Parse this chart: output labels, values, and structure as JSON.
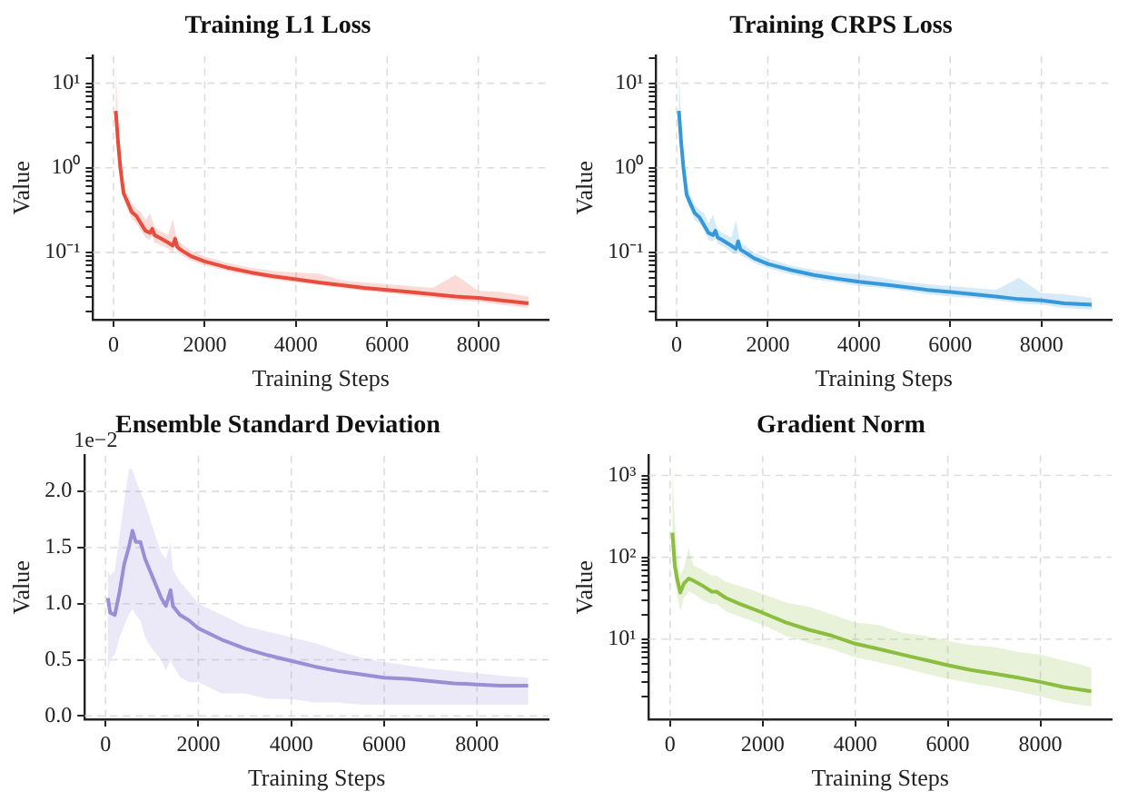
{
  "chart_data": [
    {
      "type": "line",
      "title": "Training L1 Loss",
      "xlabel": "Training Steps",
      "ylabel": "Value",
      "log": "y",
      "grid": true,
      "legend": false,
      "x": [
        50,
        100,
        150,
        220,
        300,
        400,
        500,
        600,
        700,
        800,
        850,
        900,
        1000,
        1200,
        1300,
        1350,
        1400,
        1500,
        1700,
        2000,
        2500,
        3000,
        3500,
        4000,
        4500,
        5000,
        5500,
        6000,
        6500,
        7000,
        7500,
        8000,
        8500,
        9100
      ],
      "series": [
        {
          "color": "#e74c3c",
          "values": [
            4.7,
            2.0,
            1.0,
            0.5,
            0.4,
            0.3,
            0.27,
            0.22,
            0.18,
            0.17,
            0.19,
            0.16,
            0.15,
            0.13,
            0.12,
            0.145,
            0.115,
            0.105,
            0.09,
            0.078,
            0.066,
            0.058,
            0.052,
            0.048,
            0.044,
            0.041,
            0.038,
            0.036,
            0.034,
            0.032,
            0.03,
            0.029,
            0.027,
            0.025
          ],
          "lower": [
            3.5,
            1.6,
            0.8,
            0.42,
            0.33,
            0.25,
            0.22,
            0.18,
            0.15,
            0.14,
            0.16,
            0.13,
            0.125,
            0.11,
            0.1,
            0.12,
            0.1,
            0.092,
            0.08,
            0.07,
            0.06,
            0.053,
            0.048,
            0.044,
            0.041,
            0.038,
            0.035,
            0.033,
            0.031,
            0.029,
            0.027,
            0.026,
            0.024,
            0.022
          ],
          "upper": [
            17,
            3,
            1.4,
            0.62,
            0.5,
            0.38,
            0.33,
            0.3,
            0.24,
            0.29,
            0.24,
            0.2,
            0.18,
            0.16,
            0.25,
            0.18,
            0.14,
            0.125,
            0.105,
            0.09,
            0.075,
            0.066,
            0.06,
            0.058,
            0.056,
            0.047,
            0.044,
            0.042,
            0.04,
            0.038,
            0.054,
            0.035,
            0.034,
            0.03
          ]
        }
      ],
      "xlim": [
        -450,
        9540
      ],
      "xticks": [
        0,
        2000,
        4000,
        6000,
        8000
      ],
      "ylim": [
        0.016,
        21
      ],
      "yticks": [
        {
          "value": 0.02,
          "label": null
        },
        {
          "value": 0.03,
          "label": null
        },
        {
          "value": 0.04,
          "label": null
        },
        {
          "value": 0.05,
          "label": null
        },
        {
          "value": 0.06,
          "label": null
        },
        {
          "value": 0.07,
          "label": null
        },
        {
          "value": 0.08,
          "label": null
        },
        {
          "value": 0.09,
          "label": null
        },
        {
          "value": 0.1,
          "label": "10⁻¹"
        },
        {
          "value": 0.2,
          "label": null
        },
        {
          "value": 0.3,
          "label": null
        },
        {
          "value": 0.4,
          "label": null
        },
        {
          "value": 0.5,
          "label": null
        },
        {
          "value": 0.6,
          "label": null
        },
        {
          "value": 0.7,
          "label": null
        },
        {
          "value": 0.8,
          "label": null
        },
        {
          "value": 0.9,
          "label": null
        },
        {
          "value": 1,
          "label": "10⁰"
        },
        {
          "value": 2,
          "label": null
        },
        {
          "value": 3,
          "label": null
        },
        {
          "value": 4,
          "label": null
        },
        {
          "value": 5,
          "label": null
        },
        {
          "value": 6,
          "label": null
        },
        {
          "value": 7,
          "label": null
        },
        {
          "value": 8,
          "label": null
        },
        {
          "value": 9,
          "label": null
        },
        {
          "value": 10,
          "label": "10¹"
        },
        {
          "value": 20,
          "label": null
        }
      ]
    },
    {
      "type": "line",
      "title": "Training CRPS Loss",
      "xlabel": "Training Steps",
      "ylabel": "Value",
      "log": "y",
      "grid": true,
      "legend": false,
      "x": [
        50,
        100,
        150,
        220,
        300,
        400,
        500,
        600,
        700,
        800,
        850,
        900,
        1000,
        1200,
        1300,
        1350,
        1400,
        1500,
        1700,
        2000,
        2500,
        3000,
        3500,
        4000,
        4500,
        5000,
        5500,
        6000,
        6500,
        7000,
        7500,
        8000,
        8500,
        9100
      ],
      "series": [
        {
          "color": "#3498db",
          "values": [
            4.7,
            2.0,
            1.0,
            0.48,
            0.38,
            0.29,
            0.26,
            0.21,
            0.17,
            0.16,
            0.18,
            0.15,
            0.14,
            0.12,
            0.11,
            0.135,
            0.108,
            0.1,
            0.085,
            0.073,
            0.062,
            0.054,
            0.049,
            0.045,
            0.042,
            0.039,
            0.036,
            0.034,
            0.032,
            0.03,
            0.028,
            0.027,
            0.025,
            0.024
          ],
          "lower": [
            3.5,
            1.6,
            0.8,
            0.4,
            0.32,
            0.24,
            0.22,
            0.18,
            0.14,
            0.135,
            0.15,
            0.125,
            0.12,
            0.1,
            0.095,
            0.11,
            0.093,
            0.087,
            0.075,
            0.065,
            0.055,
            0.048,
            0.044,
            0.04,
            0.038,
            0.035,
            0.032,
            0.03,
            0.029,
            0.027,
            0.025,
            0.024,
            0.022,
            0.021
          ],
          "upper": [
            17,
            3,
            1.4,
            0.6,
            0.48,
            0.36,
            0.32,
            0.29,
            0.22,
            0.28,
            0.22,
            0.19,
            0.17,
            0.15,
            0.24,
            0.17,
            0.13,
            0.12,
            0.1,
            0.085,
            0.07,
            0.062,
            0.057,
            0.055,
            0.05,
            0.045,
            0.042,
            0.04,
            0.038,
            0.036,
            0.05,
            0.033,
            0.032,
            0.029
          ]
        }
      ],
      "xlim": [
        -450,
        9540
      ],
      "xticks": [
        0,
        2000,
        4000,
        6000,
        8000
      ],
      "ylim": [
        0.016,
        21
      ],
      "yticks": [
        {
          "value": 0.02,
          "label": null
        },
        {
          "value": 0.03,
          "label": null
        },
        {
          "value": 0.04,
          "label": null
        },
        {
          "value": 0.05,
          "label": null
        },
        {
          "value": 0.06,
          "label": null
        },
        {
          "value": 0.07,
          "label": null
        },
        {
          "value": 0.08,
          "label": null
        },
        {
          "value": 0.09,
          "label": null
        },
        {
          "value": 0.1,
          "label": "10⁻¹"
        },
        {
          "value": 0.2,
          "label": null
        },
        {
          "value": 0.3,
          "label": null
        },
        {
          "value": 0.4,
          "label": null
        },
        {
          "value": 0.5,
          "label": null
        },
        {
          "value": 0.6,
          "label": null
        },
        {
          "value": 0.7,
          "label": null
        },
        {
          "value": 0.8,
          "label": null
        },
        {
          "value": 0.9,
          "label": null
        },
        {
          "value": 1,
          "label": "10⁰"
        },
        {
          "value": 2,
          "label": null
        },
        {
          "value": 3,
          "label": null
        },
        {
          "value": 4,
          "label": null
        },
        {
          "value": 5,
          "label": null
        },
        {
          "value": 6,
          "label": null
        },
        {
          "value": 7,
          "label": null
        },
        {
          "value": 8,
          "label": null
        },
        {
          "value": 9,
          "label": null
        },
        {
          "value": 10,
          "label": "10¹"
        },
        {
          "value": 20,
          "label": null
        }
      ]
    },
    {
      "type": "line",
      "title": "Ensemble Standard Deviation",
      "xlabel": "Training Steps",
      "ylabel": "Value",
      "grid": true,
      "legend": false,
      "annotations": [
        "1e−2"
      ],
      "x": [
        50,
        100,
        200,
        300,
        400,
        500,
        580,
        650,
        750,
        850,
        1000,
        1200,
        1300,
        1400,
        1450,
        1600,
        1800,
        2000,
        2500,
        3000,
        3500,
        4000,
        4500,
        5000,
        5500,
        6000,
        6500,
        7000,
        7500,
        8000,
        8500,
        9100
      ],
      "series": [
        {
          "color": "#9a8fd6",
          "values": [
            1.05,
            0.92,
            0.9,
            1.1,
            1.35,
            1.5,
            1.65,
            1.55,
            1.55,
            1.4,
            1.25,
            1.05,
            0.98,
            1.12,
            0.98,
            0.9,
            0.85,
            0.78,
            0.68,
            0.6,
            0.54,
            0.49,
            0.44,
            0.4,
            0.37,
            0.34,
            0.33,
            0.31,
            0.29,
            0.28,
            0.27,
            0.27
          ],
          "lower": [
            0.4,
            0.5,
            0.55,
            0.7,
            0.8,
            0.9,
            0.95,
            0.9,
            0.85,
            0.7,
            0.6,
            0.5,
            0.4,
            0.5,
            0.45,
            0.35,
            0.3,
            0.3,
            0.2,
            0.2,
            0.15,
            0.15,
            0.12,
            0.12,
            0.1,
            0.1,
            0.1,
            0.1,
            0.1,
            0.1,
            0.1,
            0.1
          ],
          "upper": [
            1.3,
            1.25,
            1.3,
            1.6,
            1.9,
            2.2,
            2.2,
            2.1,
            2.0,
            1.9,
            1.7,
            1.45,
            1.4,
            1.55,
            1.3,
            1.2,
            1.1,
            1.0,
            0.9,
            0.8,
            0.75,
            0.7,
            0.65,
            0.58,
            0.52,
            0.48,
            0.45,
            0.42,
            0.4,
            0.38,
            0.36,
            0.34
          ]
        }
      ],
      "xlim": [
        -450,
        9540
      ],
      "xticks": [
        0,
        2000,
        4000,
        6000,
        8000
      ],
      "ylim": [
        -0.03,
        2.32
      ],
      "yticks": [
        {
          "value": 0,
          "label": "0.0"
        },
        0.5,
        {
          "value": 1,
          "label": "1.0"
        },
        1.5,
        {
          "value": 2,
          "label": "2.0"
        }
      ]
    },
    {
      "type": "line",
      "title": "Gradient Norm",
      "xlabel": "Training Steps",
      "ylabel": "Value",
      "log": "y",
      "grid": true,
      "legend": false,
      "x": [
        50,
        100,
        150,
        220,
        300,
        400,
        500,
        700,
        900,
        1000,
        1200,
        1500,
        2000,
        2500,
        3000,
        3500,
        4000,
        4500,
        5000,
        5500,
        6000,
        6500,
        7000,
        7500,
        8000,
        8500,
        9100
      ],
      "series": [
        {
          "color": "#8bbd3f",
          "values": [
            200,
            80,
            55,
            37,
            48,
            55,
            52,
            45,
            38,
            38,
            32,
            27,
            21,
            16,
            13,
            11,
            8.8,
            7.6,
            6.5,
            5.6,
            4.8,
            4.2,
            3.8,
            3.4,
            3.0,
            2.6,
            2.3
          ],
          "lower": [
            100,
            50,
            35,
            22,
            32,
            38,
            36,
            30,
            27,
            27,
            22,
            19,
            15,
            11,
            9,
            7.5,
            6,
            5.2,
            4.5,
            3.8,
            3.3,
            2.9,
            2.6,
            2.3,
            2,
            1.7,
            1.5
          ],
          "upper": [
            1200,
            300,
            110,
            60,
            75,
            130,
            80,
            70,
            60,
            60,
            50,
            45,
            36,
            28,
            25,
            20,
            16,
            15,
            12,
            11,
            9.5,
            8.5,
            8,
            7,
            6.5,
            5.5,
            4.5
          ]
        }
      ],
      "xlim": [
        -460,
        9540
      ],
      "xticks": [
        0,
        2000,
        4000,
        6000,
        8000
      ],
      "ylim": [
        1.05,
        1750
      ],
      "yticks": [
        {
          "value": 2,
          "label": null
        },
        {
          "value": 3,
          "label": null
        },
        {
          "value": 4,
          "label": null
        },
        {
          "value": 5,
          "label": null
        },
        {
          "value": 6,
          "label": null
        },
        {
          "value": 7,
          "label": null
        },
        {
          "value": 8,
          "label": null
        },
        {
          "value": 9,
          "label": null
        },
        {
          "value": 10,
          "label": "10¹"
        },
        {
          "value": 20,
          "label": null
        },
        {
          "value": 30,
          "label": null
        },
        {
          "value": 40,
          "label": null
        },
        {
          "value": 50,
          "label": null
        },
        {
          "value": 60,
          "label": null
        },
        {
          "value": 70,
          "label": null
        },
        {
          "value": 80,
          "label": null
        },
        {
          "value": 90,
          "label": null
        },
        {
          "value": 100,
          "label": "10²"
        },
        {
          "value": 200,
          "label": null
        },
        {
          "value": 300,
          "label": null
        },
        {
          "value": 400,
          "label": null
        },
        {
          "value": 500,
          "label": null
        },
        {
          "value": 600,
          "label": null
        },
        {
          "value": 700,
          "label": null
        },
        {
          "value": 800,
          "label": null
        },
        {
          "value": 900,
          "label": null
        },
        {
          "value": 1000,
          "label": "10³"
        }
      ]
    }
  ]
}
